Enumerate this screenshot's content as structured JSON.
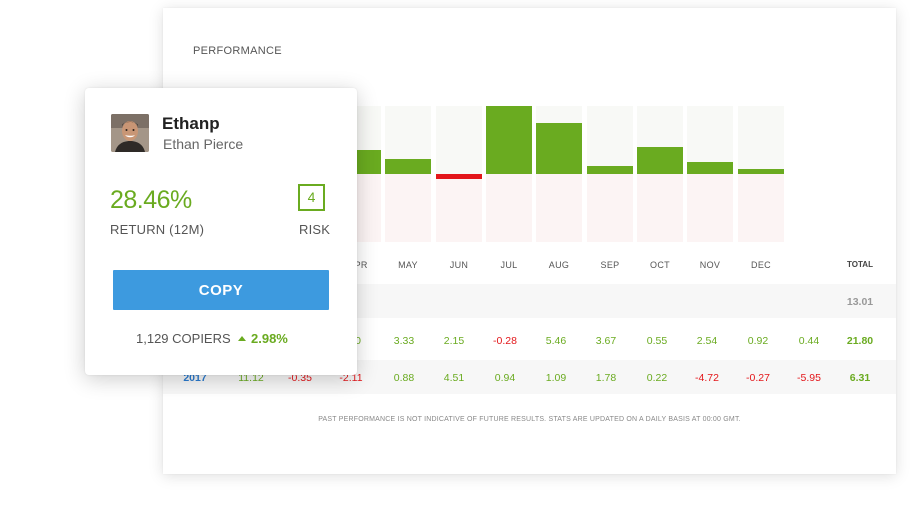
{
  "performance": {
    "title": "PERFORMANCE",
    "total_label": "TOTAL",
    "disclaimer": "PAST PERFORMANCE IS NOT INDICATIVE OF FUTURE RESULTS. STATS ARE UPDATED ON A DAILY BASIS AT 00:00 GMT.",
    "rows": [
      {
        "year": "",
        "cells": [],
        "total": "13.01"
      },
      {
        "year": "",
        "cells": [
          "0",
          "3.33",
          "2.15",
          "-0.28",
          "5.46",
          "3.67",
          "0.55",
          "2.54",
          "0.92",
          "0.44"
        ],
        "total": "21.80"
      },
      {
        "year": "2017",
        "cells": [
          "11.12",
          "-0.35",
          "-2.11",
          "0.88",
          "4.51",
          "0.94",
          "1.09",
          "1.78",
          "0.22",
          "-4.72",
          "-0.27",
          "-5.95"
        ],
        "total": "6.31"
      }
    ]
  },
  "chart_data": {
    "type": "bar",
    "categories": [
      "R",
      "APR",
      "MAY",
      "JUN",
      "JUL",
      "AUG",
      "SEP",
      "OCT",
      "NOV",
      "DEC"
    ],
    "values": [
      1.6,
      1.6,
      1.0,
      -0.3,
      4.5,
      3.4,
      0.55,
      1.8,
      0.8,
      0.3
    ],
    "ylim": [
      -4.5,
      4.5
    ],
    "colors": {
      "positive": "#6aab20",
      "negative": "#e3161a"
    }
  },
  "trader": {
    "username": "Ethanp",
    "full_name": "Ethan Pierce",
    "return_value": "28.46%",
    "return_label": "RETURN (12M)",
    "risk_value": "4",
    "risk_label": "RISK",
    "copy_label": "COPY",
    "copiers": "1,129 COPIERS",
    "copiers_change": "2.98%"
  },
  "colors": {
    "accent": "#3d9adf",
    "positive": "#6aab20",
    "negative": "#e3161a"
  }
}
